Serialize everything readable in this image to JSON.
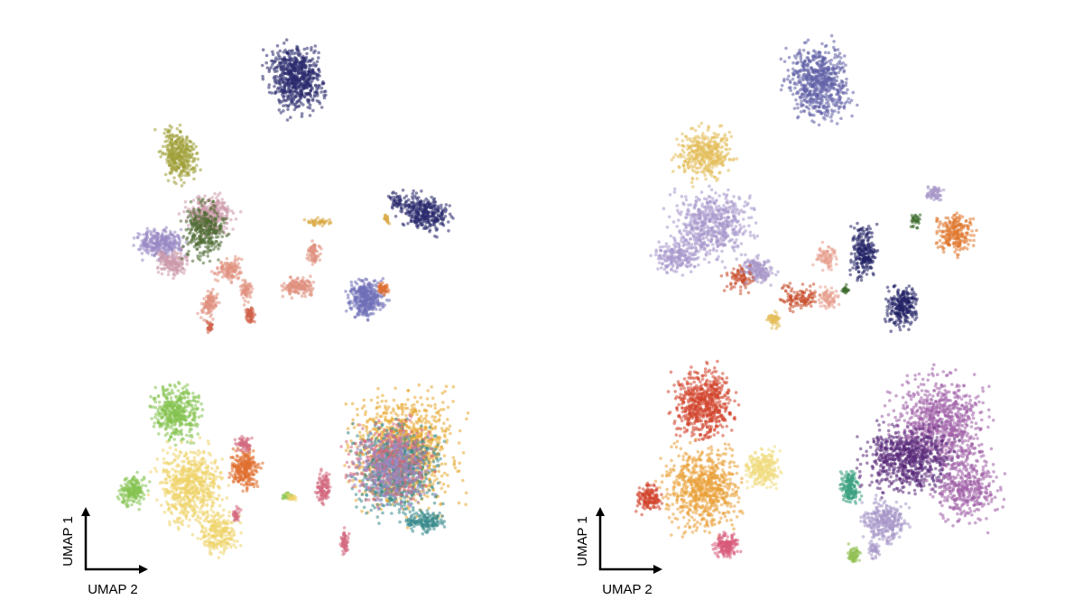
{
  "chart_data": [
    {
      "type": "scatter",
      "panel": "left",
      "xlabel": "UMAP 2",
      "ylabel": "UMAP 1",
      "grid": false,
      "legend": "none",
      "clusters": [
        {
          "name": "",
          "color": "#2a2a6e"
        },
        {
          "name": "",
          "color": "#a0a03a"
        },
        {
          "name": "",
          "color": "#cc99aa"
        },
        {
          "name": "",
          "color": "#9988c4"
        },
        {
          "name": "",
          "color": "#4e6b33"
        },
        {
          "name": "",
          "color": "#e0907e"
        },
        {
          "name": "",
          "color": "#d0604a"
        },
        {
          "name": "",
          "color": "#7070b8"
        },
        {
          "name": "",
          "color": "#d8a840"
        },
        {
          "name": "",
          "color": "#85c250"
        },
        {
          "name": "",
          "color": "#efd46a"
        },
        {
          "name": "",
          "color": "#e07030"
        },
        {
          "name": "",
          "color": "#d46a80"
        },
        {
          "name": "",
          "color": "#e8a830"
        },
        {
          "name": "",
          "color": "#3a8a8c"
        }
      ]
    },
    {
      "type": "scatter",
      "panel": "right",
      "xlabel": "UMAP 2",
      "ylabel": "UMAP 1",
      "grid": false,
      "legend": "none",
      "clusters": [
        {
          "name": "",
          "color": "#6060a8"
        },
        {
          "name": "",
          "color": "#e3be5a"
        },
        {
          "name": "",
          "color": "#a898cc"
        },
        {
          "name": "",
          "color": "#222266"
        },
        {
          "name": "",
          "color": "#e07830"
        },
        {
          "name": "",
          "color": "#e8a090"
        },
        {
          "name": "",
          "color": "#c85030"
        },
        {
          "name": "",
          "color": "#3a6a2a"
        },
        {
          "name": "",
          "color": "#d2442c"
        },
        {
          "name": "",
          "color": "#eaa038"
        },
        {
          "name": "",
          "color": "#f0dc80"
        },
        {
          "name": "",
          "color": "#d85a7a"
        },
        {
          "name": "",
          "color": "#a060a8"
        },
        {
          "name": "",
          "color": "#5a2a7a"
        },
        {
          "name": "",
          "color": "#3aa080"
        },
        {
          "name": "",
          "color": "#a898c8"
        },
        {
          "name": "",
          "color": "#90c050"
        }
      ]
    }
  ]
}
